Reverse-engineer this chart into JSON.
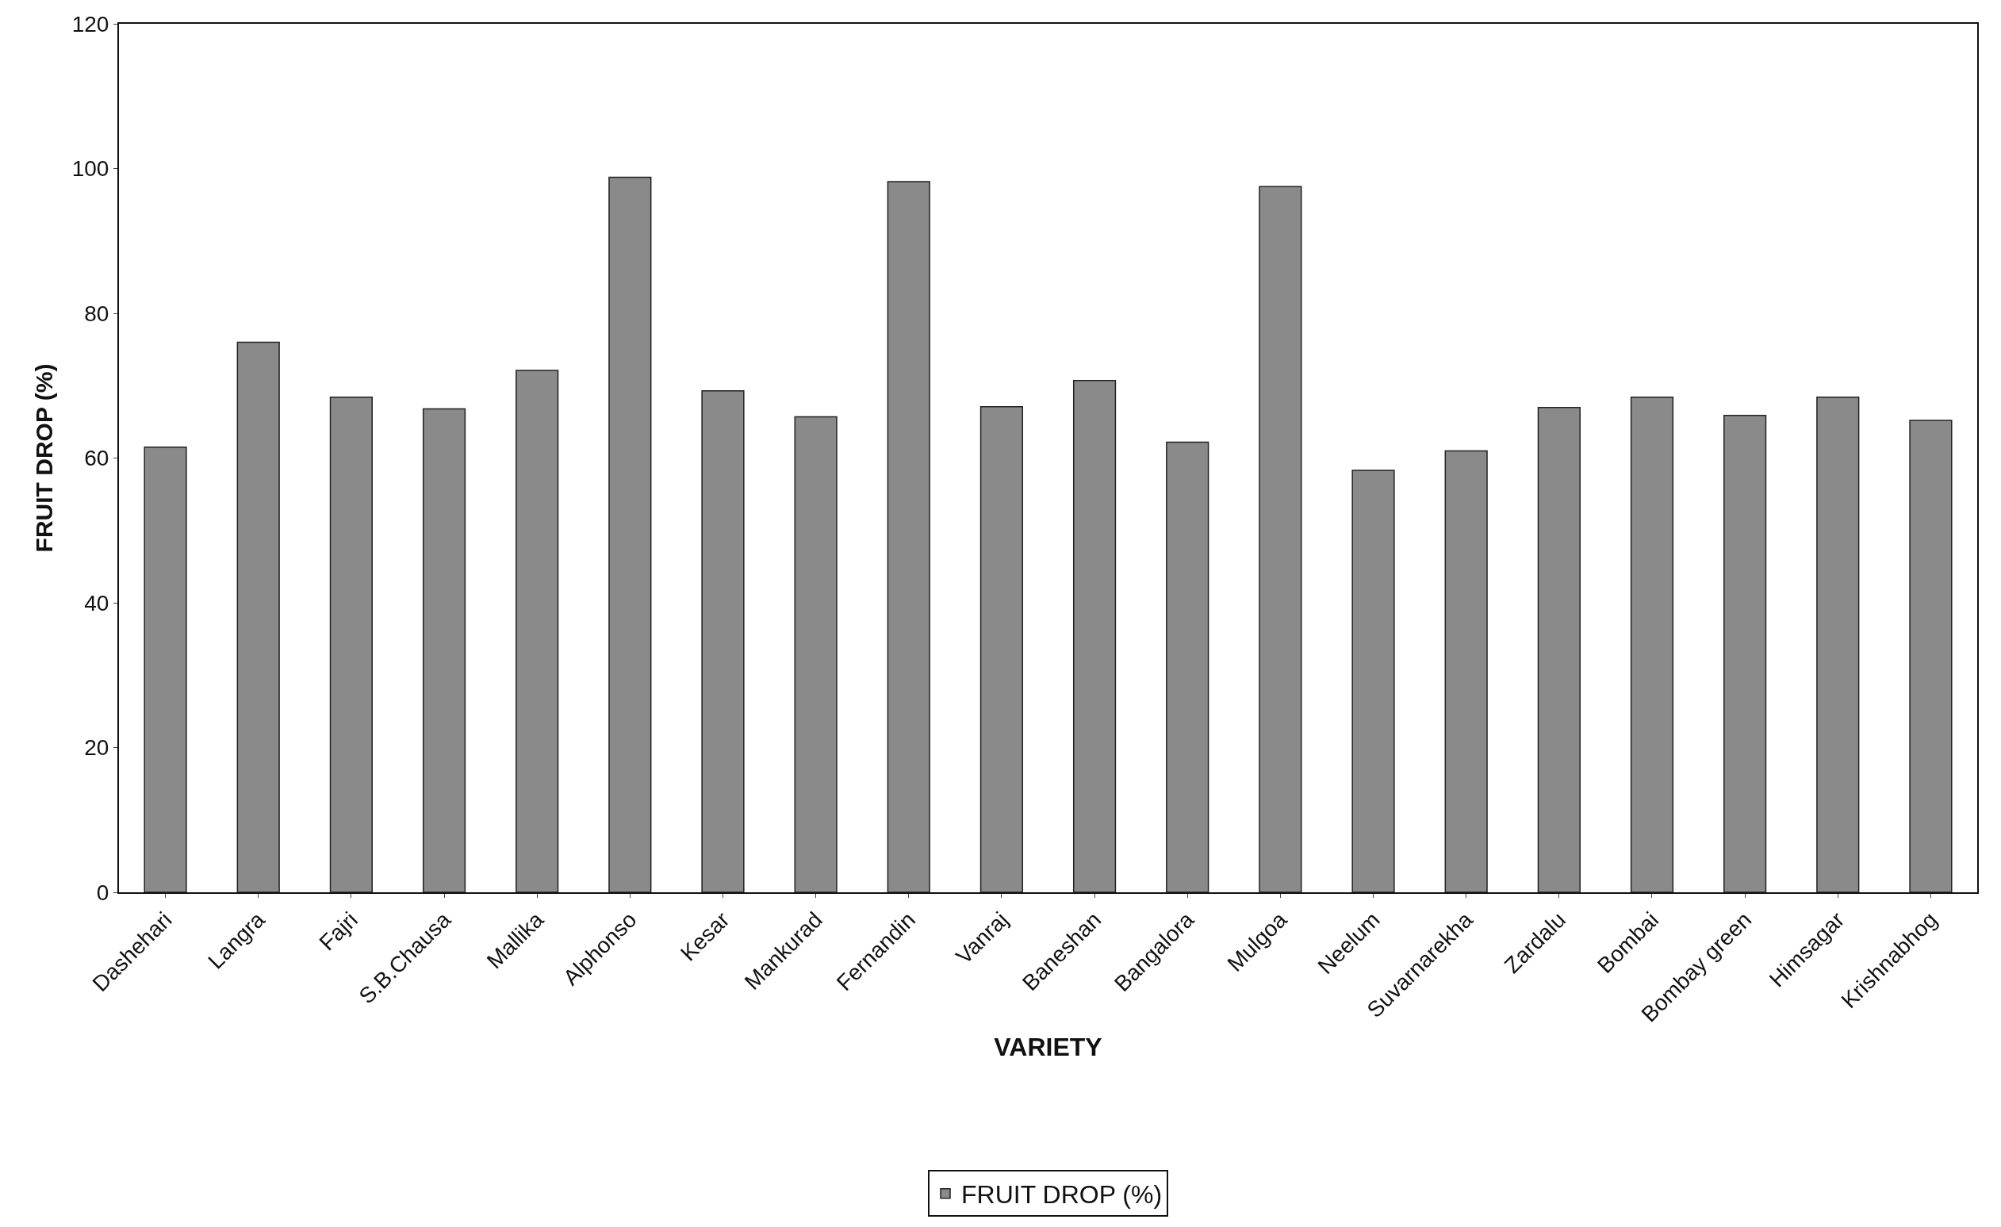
{
  "chart_data": {
    "type": "bar",
    "xlabel": "VARIETY",
    "ylabel": "FRUIT DROP (%)",
    "categories": [
      "Dashehari",
      "Langra",
      "Fajri",
      "S.B.Chausa",
      "Mallika",
      "Alphonso",
      "Kesar",
      "Mankurad",
      "Fernandin",
      "Vanraj",
      "Baneshan",
      "Bangalora",
      "Mulgoa",
      "Neelum",
      "Suvarnarekha",
      "Zardalu",
      "Bombai",
      "Bombay green",
      "Himsagar",
      "Krishnabhog"
    ],
    "series": [
      {
        "name": "FRUIT DROP (%)",
        "color": "#8a8a8a",
        "values": [
          61.5,
          76,
          68.4,
          66.8,
          72.1,
          98.8,
          69.3,
          65.7,
          98.2,
          67.1,
          70.7,
          62.2,
          97.5,
          58.3,
          61,
          67,
          68.4,
          65.9,
          68.4,
          65.2
        ]
      }
    ],
    "ylim": [
      0,
      120
    ],
    "yticks": [
      0,
      20,
      40,
      60,
      80,
      100,
      120
    ],
    "legend": "bottom"
  }
}
